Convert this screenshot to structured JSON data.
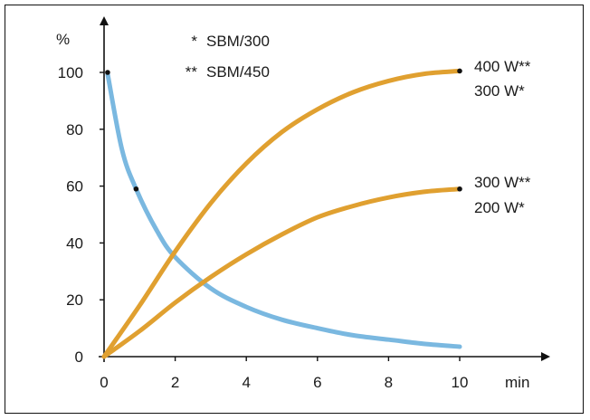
{
  "chart_data": {
    "type": "line",
    "xlabel": "min",
    "ylabel": "%",
    "xlim": [
      0,
      10
    ],
    "ylim": [
      0,
      100
    ],
    "xticks": [
      "0",
      "2",
      "4",
      "6",
      "8",
      "10"
    ],
    "yticks": [
      "0",
      "20",
      "40",
      "60",
      "80",
      "100"
    ],
    "grid": false,
    "legend": {
      "placement": "top-left",
      "entries": [
        {
          "marker": "*",
          "label": "SBM/300"
        },
        {
          "marker": "**",
          "label": "SBM/450"
        }
      ]
    },
    "series": [
      {
        "color": "#7ab8e0",
        "labels": [],
        "x": [
          0.1,
          0.5,
          0.9,
          1.5,
          2,
          3,
          4,
          5,
          6,
          7,
          8,
          9,
          10
        ],
        "y": [
          99.5,
          73,
          59,
          44,
          35,
          24,
          17.5,
          13,
          10,
          7.5,
          6,
          4.5,
          3.5
        ]
      },
      {
        "color": "#e0a030",
        "labels": [
          "400 W**",
          "300 W*"
        ],
        "x": [
          0,
          1,
          2,
          3,
          4,
          5,
          6,
          7,
          8,
          9,
          10
        ],
        "y": [
          0,
          18,
          37,
          54,
          68,
          79,
          87,
          93,
          97,
          99.5,
          100.5
        ]
      },
      {
        "color": "#e0a030",
        "labels": [
          "300 W**",
          "200 W*"
        ],
        "x": [
          0,
          1,
          2,
          3,
          4,
          5,
          6,
          7,
          8,
          9,
          10
        ],
        "y": [
          0,
          9,
          19,
          28,
          36,
          43,
          49,
          53,
          56,
          58,
          59
        ]
      }
    ],
    "markers": [
      {
        "x": 0.1,
        "y": 100
      },
      {
        "x": 0.9,
        "y": 59
      },
      {
        "x": 10,
        "y": 100.5
      },
      {
        "x": 10,
        "y": 59
      }
    ]
  }
}
